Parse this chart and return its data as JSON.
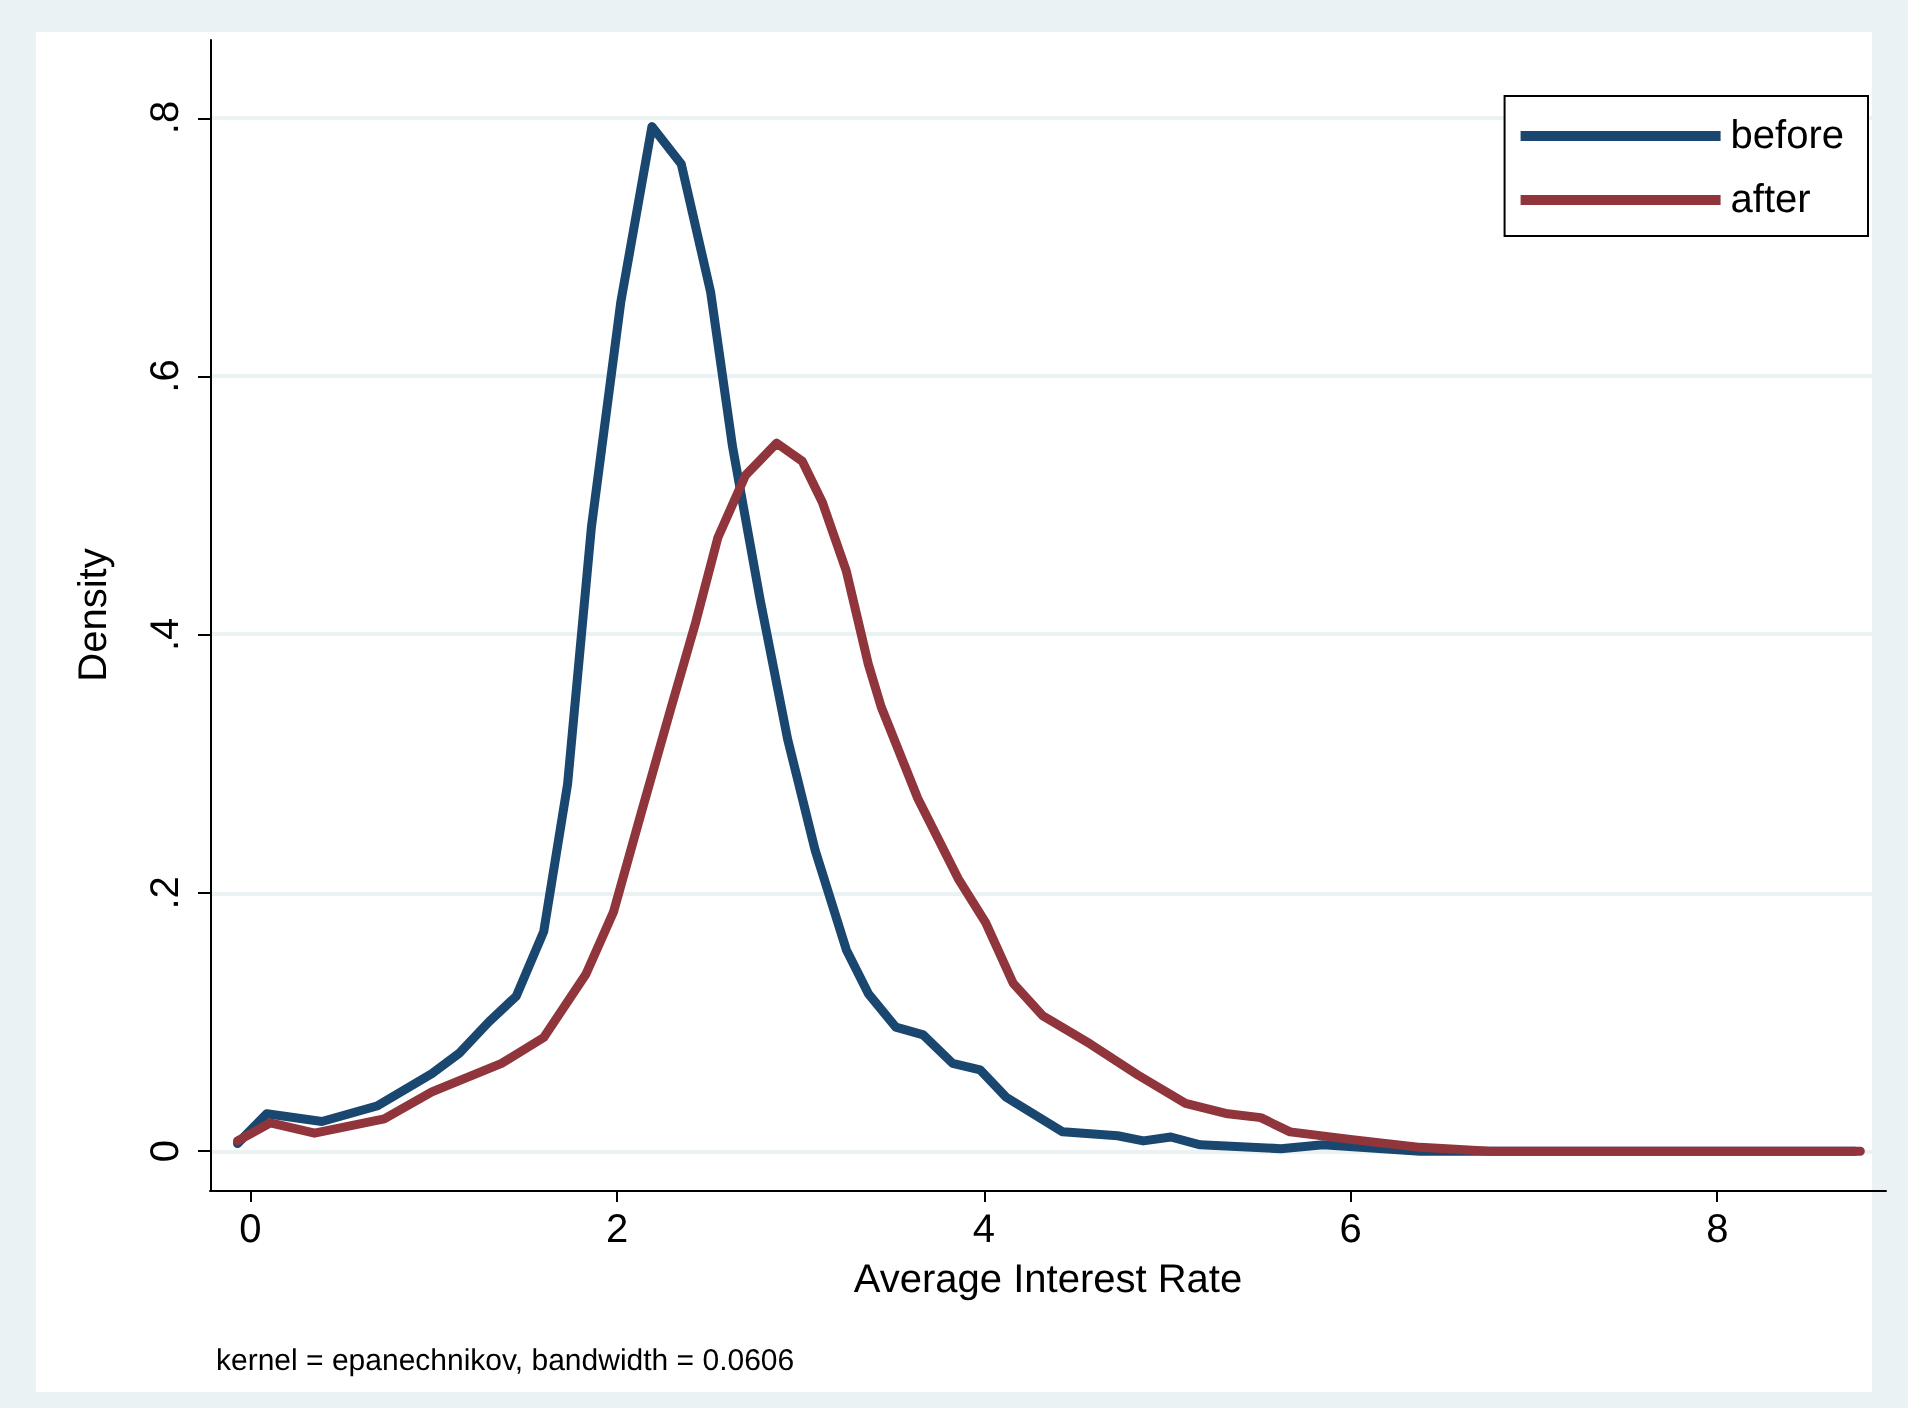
{
  "chart_data": {
    "type": "line",
    "xlabel": "Average Interest Rate",
    "ylabel": "Density",
    "annotations": [
      "kernel = epanechnikov, bandwidth = 0.0606"
    ],
    "xlim": [
      -0.22,
      8.92
    ],
    "xticks": [
      0,
      2,
      4,
      6,
      8
    ],
    "ylim": [
      -0.03,
      0.86
    ],
    "yticks": [
      0,
      {
        "value": 0.2,
        "label": ".2"
      },
      {
        "value": 0.4,
        "label": ".4"
      },
      {
        "value": 0.6,
        "label": ".6"
      },
      {
        "value": 0.8,
        "label": ".8"
      }
    ],
    "grid": "y",
    "legend": "top right",
    "marker": "none",
    "line_style": "solid",
    "series": [
      {
        "name": "before",
        "color": "#1a476f",
        "x": [
          -0.07,
          0.09,
          0.39,
          0.69,
          0.99,
          1.14,
          1.3,
          1.45,
          1.6,
          1.73,
          1.86,
          2.02,
          2.19,
          2.35,
          2.51,
          2.63,
          2.78,
          2.93,
          3.08,
          3.25,
          3.37,
          3.52,
          3.67,
          3.83,
          3.98,
          4.12,
          4.43,
          4.73,
          4.87,
          5.02,
          5.18,
          5.62,
          5.85,
          6.38,
          7.0,
          8.75
        ],
        "values": [
          0.006,
          0.029,
          0.023,
          0.035,
          0.06,
          0.076,
          0.1,
          0.12,
          0.17,
          0.284,
          0.483,
          0.657,
          0.793,
          0.764,
          0.665,
          0.545,
          0.427,
          0.319,
          0.233,
          0.156,
          0.122,
          0.096,
          0.09,
          0.068,
          0.063,
          0.042,
          0.015,
          0.012,
          0.008,
          0.011,
          0.005,
          0.002,
          0.005,
          0.0,
          0.0,
          0.0
        ]
      },
      {
        "name": "after",
        "color": "#90353b",
        "x": [
          -0.07,
          0.11,
          0.35,
          0.73,
          0.99,
          1.37,
          1.6,
          1.83,
          1.98,
          2.13,
          2.29,
          2.43,
          2.55,
          2.7,
          2.87,
          3.01,
          3.12,
          3.25,
          3.37,
          3.44,
          3.64,
          3.86,
          4.01,
          4.16,
          4.32,
          4.58,
          4.84,
          5.1,
          5.33,
          5.51,
          5.67,
          6.01,
          6.38,
          6.76,
          8.78
        ],
        "values": [
          0.008,
          0.022,
          0.014,
          0.025,
          0.046,
          0.068,
          0.088,
          0.137,
          0.185,
          0.261,
          0.341,
          0.41,
          0.475,
          0.523,
          0.548,
          0.534,
          0.502,
          0.449,
          0.377,
          0.344,
          0.273,
          0.211,
          0.177,
          0.13,
          0.105,
          0.083,
          0.059,
          0.037,
          0.029,
          0.026,
          0.015,
          0.009,
          0.003,
          0.0,
          0.0
        ]
      }
    ]
  }
}
